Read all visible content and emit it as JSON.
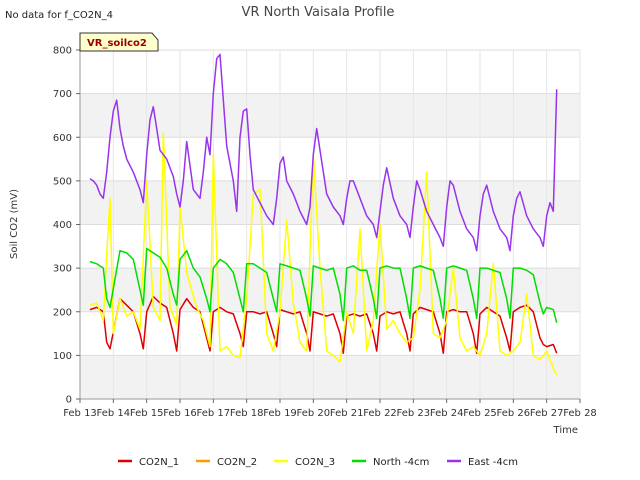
{
  "chart_data": {
    "type": "line",
    "title": "VR North Vaisala Profile",
    "note": "No data for f_CO2N_4",
    "site_label": "VR_soilco2",
    "xlabel": "Time",
    "ylabel": "Soil CO2 (mV)",
    "xlim": [
      13,
      28
    ],
    "ylim": [
      0,
      800
    ],
    "x_tick_values": [
      13,
      14,
      15,
      16,
      17,
      18,
      19,
      20,
      21,
      22,
      23,
      24,
      25,
      26,
      27,
      28
    ],
    "x_tick_labels": [
      "Feb 13",
      "Feb 14",
      "Feb 15",
      "Feb 16",
      "Feb 17",
      "Feb 18",
      "Feb 19",
      "Feb 20",
      "Feb 21",
      "Feb 22",
      "Feb 23",
      "Feb 24",
      "Feb 25",
      "Feb 26",
      "Feb 27",
      "Feb 28"
    ],
    "y_ticks": [
      0,
      100,
      200,
      300,
      400,
      500,
      600,
      700,
      800
    ],
    "grid": true,
    "legend_position": "bottom",
    "series": [
      {
        "name": "CO2N_1",
        "color": "#dd0000",
        "x": [
          13.3,
          13.5,
          13.7,
          13.8,
          13.9,
          14.2,
          14.4,
          14.6,
          14.8,
          14.9,
          15.0,
          15.2,
          15.4,
          15.6,
          15.8,
          15.9,
          16.0,
          16.2,
          16.4,
          16.6,
          16.8,
          16.9,
          17.0,
          17.2,
          17.4,
          17.6,
          17.8,
          17.9,
          18.0,
          18.2,
          18.4,
          18.6,
          18.8,
          18.9,
          19.0,
          19.2,
          19.4,
          19.6,
          19.8,
          19.9,
          20.0,
          20.2,
          20.4,
          20.6,
          20.8,
          20.9,
          21.0,
          21.2,
          21.4,
          21.6,
          21.8,
          21.9,
          22.0,
          22.2,
          22.4,
          22.6,
          22.8,
          22.9,
          23.0,
          23.2,
          23.4,
          23.6,
          23.8,
          23.9,
          24.0,
          24.2,
          24.4,
          24.6,
          24.8,
          24.9,
          25.0,
          25.2,
          25.4,
          25.6,
          25.8,
          25.9,
          26.0,
          26.2,
          26.4,
          26.6,
          26.8,
          26.9,
          27.0,
          27.2,
          27.3
        ],
        "y": [
          205,
          210,
          200,
          130,
          115,
          230,
          215,
          200,
          150,
          115,
          200,
          235,
          220,
          210,
          150,
          110,
          205,
          230,
          210,
          200,
          140,
          110,
          200,
          210,
          200,
          195,
          150,
          120,
          200,
          200,
          195,
          200,
          150,
          120,
          205,
          200,
          195,
          200,
          150,
          110,
          200,
          195,
          190,
          195,
          150,
          105,
          190,
          195,
          190,
          195,
          150,
          110,
          190,
          200,
          195,
          200,
          150,
          110,
          195,
          210,
          205,
          200,
          150,
          105,
          200,
          205,
          200,
          200,
          150,
          105,
          195,
          210,
          200,
          190,
          140,
          110,
          200,
          210,
          215,
          200,
          140,
          125,
          120,
          125,
          105
        ]
      },
      {
        "name": "CO2N_2",
        "color": "#ff9900",
        "x": [],
        "y": []
      },
      {
        "name": "CO2N_3",
        "color": "#ffff00",
        "x": [
          13.3,
          13.5,
          13.7,
          13.8,
          13.9,
          14.0,
          14.2,
          14.4,
          14.6,
          14.8,
          15.0,
          15.2,
          15.4,
          15.5,
          15.7,
          15.9,
          16.0,
          16.2,
          16.5,
          16.7,
          16.9,
          17.0,
          17.2,
          17.4,
          17.6,
          17.8,
          18.0,
          18.2,
          18.4,
          18.6,
          18.8,
          19.0,
          19.2,
          19.4,
          19.6,
          19.8,
          20.0,
          20.2,
          20.4,
          20.6,
          20.8,
          21.0,
          21.2,
          21.4,
          21.6,
          21.8,
          22.0,
          22.2,
          22.4,
          22.6,
          22.8,
          23.0,
          23.2,
          23.4,
          23.6,
          23.8,
          24.0,
          24.2,
          24.4,
          24.6,
          24.8,
          25.0,
          25.2,
          25.4,
          25.6,
          25.8,
          26.0,
          26.2,
          26.4,
          26.6,
          26.8,
          27.0,
          27.2,
          27.3
        ],
        "y": [
          215,
          220,
          180,
          330,
          460,
          150,
          230,
          190,
          200,
          160,
          500,
          210,
          180,
          610,
          210,
          170,
          440,
          290,
          210,
          180,
          120,
          560,
          110,
          120,
          100,
          95,
          230,
          470,
          480,
          150,
          110,
          200,
          410,
          220,
          130,
          110,
          560,
          300,
          110,
          100,
          85,
          200,
          150,
          390,
          110,
          180,
          400,
          160,
          180,
          150,
          130,
          140,
          250,
          520,
          150,
          140,
          180,
          300,
          140,
          110,
          120,
          100,
          150,
          310,
          110,
          100,
          110,
          130,
          240,
          100,
          90,
          110,
          70,
          55
        ]
      },
      {
        "name": "North -4cm",
        "color": "#00dd00",
        "x": [
          13.3,
          13.5,
          13.7,
          13.8,
          13.9,
          14.2,
          14.4,
          14.6,
          14.8,
          14.9,
          15.0,
          15.2,
          15.4,
          15.6,
          15.8,
          15.9,
          16.0,
          16.2,
          16.4,
          16.6,
          16.8,
          16.9,
          17.0,
          17.2,
          17.4,
          17.6,
          17.8,
          17.9,
          18.0,
          18.2,
          18.4,
          18.6,
          18.8,
          18.9,
          19.0,
          19.2,
          19.4,
          19.6,
          19.8,
          19.9,
          20.0,
          20.2,
          20.4,
          20.6,
          20.8,
          20.9,
          21.0,
          21.2,
          21.4,
          21.6,
          21.8,
          21.9,
          22.0,
          22.2,
          22.4,
          22.6,
          22.8,
          22.9,
          23.0,
          23.2,
          23.4,
          23.6,
          23.8,
          23.9,
          24.0,
          24.2,
          24.4,
          24.6,
          24.8,
          24.9,
          25.0,
          25.2,
          25.4,
          25.6,
          25.8,
          25.9,
          26.0,
          26.2,
          26.4,
          26.6,
          26.8,
          26.9,
          27.0,
          27.2,
          27.3
        ],
        "y": [
          315,
          310,
          300,
          230,
          210,
          340,
          335,
          320,
          250,
          215,
          345,
          335,
          325,
          300,
          240,
          215,
          320,
          340,
          300,
          280,
          230,
          200,
          300,
          320,
          310,
          290,
          230,
          200,
          310,
          310,
          300,
          290,
          230,
          200,
          310,
          305,
          300,
          295,
          230,
          190,
          305,
          300,
          295,
          300,
          240,
          180,
          300,
          305,
          295,
          295,
          230,
          185,
          300,
          305,
          300,
          300,
          230,
          185,
          300,
          305,
          300,
          295,
          230,
          185,
          300,
          305,
          300,
          295,
          230,
          185,
          300,
          300,
          295,
          290,
          230,
          185,
          300,
          300,
          295,
          285,
          220,
          195,
          210,
          205,
          175
        ]
      },
      {
        "name": "East -4cm",
        "color": "#9933ee",
        "x": [
          13.3,
          13.4,
          13.5,
          13.6,
          13.7,
          13.8,
          13.9,
          14.0,
          14.1,
          14.2,
          14.3,
          14.4,
          14.6,
          14.8,
          14.9,
          15.0,
          15.1,
          15.2,
          15.3,
          15.4,
          15.6,
          15.8,
          15.9,
          16.0,
          16.1,
          16.2,
          16.4,
          16.6,
          16.7,
          16.8,
          16.9,
          17.0,
          17.1,
          17.2,
          17.4,
          17.6,
          17.7,
          17.8,
          17.9,
          18.0,
          18.1,
          18.2,
          18.4,
          18.6,
          18.8,
          18.9,
          19.0,
          19.1,
          19.2,
          19.4,
          19.6,
          19.8,
          19.9,
          20.0,
          20.1,
          20.2,
          20.4,
          20.6,
          20.8,
          20.9,
          21.0,
          21.1,
          21.2,
          21.4,
          21.6,
          21.8,
          21.9,
          22.0,
          22.1,
          22.2,
          22.4,
          22.6,
          22.8,
          22.9,
          23.0,
          23.1,
          23.2,
          23.4,
          23.6,
          23.8,
          23.9,
          24.0,
          24.1,
          24.2,
          24.4,
          24.6,
          24.8,
          24.9,
          25.0,
          25.1,
          25.2,
          25.4,
          25.6,
          25.8,
          25.9,
          26.0,
          26.1,
          26.2,
          26.4,
          26.6,
          26.8,
          26.9,
          27.0,
          27.1,
          27.2,
          27.3
        ],
        "y": [
          505,
          500,
          490,
          470,
          460,
          520,
          600,
          660,
          685,
          620,
          580,
          550,
          520,
          480,
          450,
          560,
          640,
          670,
          620,
          570,
          550,
          510,
          470,
          440,
          500,
          590,
          480,
          460,
          520,
          600,
          560,
          700,
          780,
          790,
          580,
          500,
          430,
          600,
          660,
          665,
          560,
          480,
          450,
          420,
          400,
          460,
          540,
          555,
          500,
          470,
          430,
          400,
          440,
          560,
          620,
          570,
          470,
          440,
          420,
          400,
          460,
          500,
          500,
          460,
          420,
          400,
          370,
          430,
          490,
          530,
          460,
          420,
          400,
          370,
          440,
          500,
          480,
          430,
          400,
          370,
          350,
          440,
          500,
          490,
          430,
          390,
          370,
          340,
          420,
          470,
          490,
          430,
          390,
          370,
          340,
          420,
          460,
          475,
          420,
          390,
          370,
          350,
          420,
          450,
          430,
          710
        ]
      }
    ]
  }
}
